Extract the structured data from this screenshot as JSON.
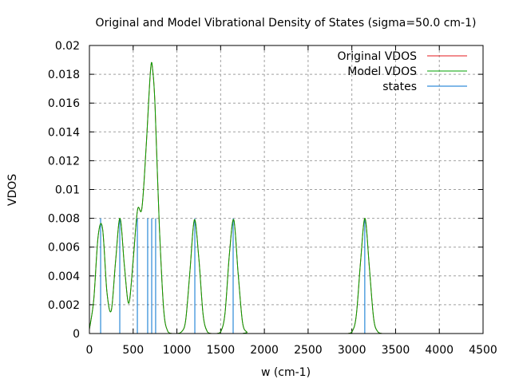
{
  "chart_data": {
    "type": "line",
    "title": "Original and Model Vibrational Density of States (sigma=50.0 cm-1)",
    "xlabel": "w (cm-1)",
    "ylabel": "VDOS",
    "xlim": [
      0,
      4500
    ],
    "ylim": [
      0,
      0.02
    ],
    "grid": true,
    "legend_position": "top-right",
    "xticks": [
      0,
      500,
      1000,
      1500,
      2000,
      2500,
      3000,
      3500,
      4000,
      4500
    ],
    "xtick_labels": [
      "0",
      "500",
      "1000",
      "1500",
      "2000",
      "2500",
      "3000",
      "3500",
      "4000",
      "4500"
    ],
    "yticks": [
      0,
      0.002,
      0.004,
      0.006,
      0.008,
      0.01,
      0.012,
      0.014,
      0.016,
      0.018,
      0.02
    ],
    "ytick_labels": [
      "0",
      "0.002",
      "0.004",
      "0.006",
      "0.008",
      "0.01",
      "0.012",
      "0.014",
      "0.016",
      "0.018",
      "0.02"
    ],
    "sigma": 50.0,
    "series": [
      {
        "name": "Original VDOS",
        "color": "#e41a1c",
        "x": [
          0,
          50,
          100,
          150,
          200,
          250,
          300,
          350,
          400,
          450,
          500,
          550,
          600,
          650,
          700,
          725,
          750,
          800,
          850,
          900,
          950,
          1000,
          1050,
          1100,
          1150,
          1200,
          1250,
          1300,
          1350,
          1400,
          1450,
          1500,
          1550,
          1600,
          1650,
          1700,
          1750,
          1800,
          1850,
          2900,
          2950,
          3000,
          3050,
          3100,
          3150,
          3200,
          3250,
          3300,
          3350
        ],
        "y": [
          0.0003,
          0.0024,
          0.0068,
          0.0073,
          0.0029,
          0.0016,
          0.0051,
          0.008,
          0.0047,
          0.0021,
          0.0051,
          0.0086,
          0.0087,
          0.0131,
          0.0184,
          0.0182,
          0.0158,
          0.0074,
          0.0016,
          0.0001,
          0.0,
          0.0,
          0.0001,
          0.0009,
          0.0044,
          0.0079,
          0.0053,
          0.0013,
          0.0001,
          0.0,
          0.0,
          0.0001,
          0.0014,
          0.0055,
          0.0079,
          0.0042,
          0.0008,
          0.0001,
          0.0,
          0.0,
          0.0,
          0.0001,
          0.0012,
          0.005,
          0.008,
          0.0046,
          0.001,
          0.0001,
          0.0
        ]
      },
      {
        "name": "Model VDOS",
        "color": "#00a000",
        "x": [
          0,
          50,
          100,
          150,
          200,
          250,
          300,
          350,
          400,
          450,
          500,
          550,
          600,
          650,
          700,
          725,
          750,
          800,
          850,
          900,
          950,
          1000,
          1050,
          1100,
          1150,
          1200,
          1250,
          1300,
          1350,
          1400,
          1450,
          1500,
          1550,
          1600,
          1650,
          1700,
          1750,
          1800,
          1850,
          2900,
          2950,
          3000,
          3050,
          3100,
          3150,
          3200,
          3250,
          3300,
          3350
        ],
        "y": [
          0.0003,
          0.0024,
          0.0068,
          0.0073,
          0.0029,
          0.0016,
          0.0051,
          0.008,
          0.0047,
          0.0021,
          0.0051,
          0.0086,
          0.0087,
          0.0131,
          0.0184,
          0.0182,
          0.0158,
          0.0074,
          0.0016,
          0.0001,
          0.0,
          0.0,
          0.0001,
          0.0009,
          0.0044,
          0.0079,
          0.0053,
          0.0013,
          0.0001,
          0.0,
          0.0,
          0.0001,
          0.0014,
          0.0055,
          0.0079,
          0.0042,
          0.0008,
          0.0001,
          0.0,
          0.0,
          0.0,
          0.0001,
          0.0012,
          0.005,
          0.008,
          0.0046,
          0.001,
          0.0001,
          0.0
        ]
      },
      {
        "name": "states",
        "color": "#0072d0",
        "type": "impulse",
        "x": [
          128,
          347,
          548,
          666,
          712,
          757,
          1205,
          1643,
          3148
        ],
        "y": [
          0.008,
          0.008,
          0.008,
          0.008,
          0.008,
          0.008,
          0.008,
          0.008,
          0.008
        ]
      }
    ]
  }
}
